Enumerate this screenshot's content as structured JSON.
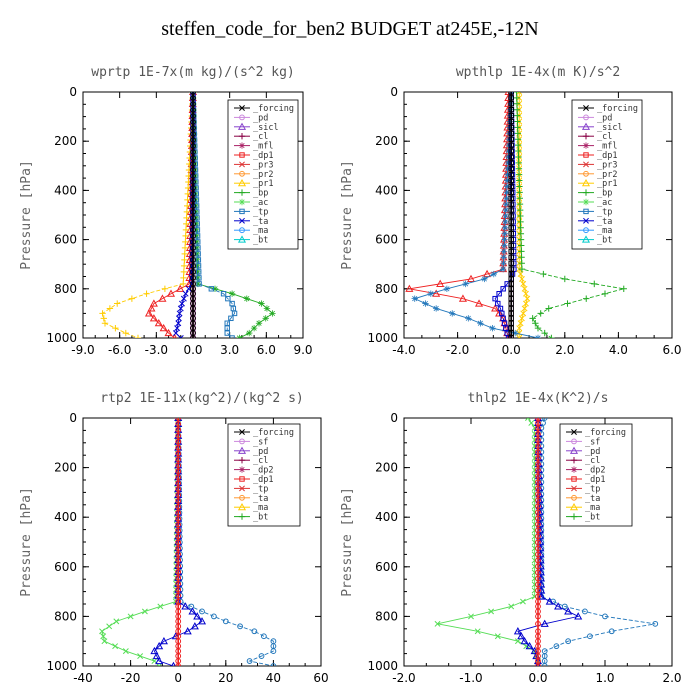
{
  "title": "steffen_code_for_ben2  BUDGET at245E,-12N",
  "chart_data": [
    {
      "type": "line",
      "title": "wprtp  1E-7x(m kg)/(s^2 kg)",
      "ylabel": "Pressure [hPa]",
      "xlim": [
        -9,
        9
      ],
      "ylim": [
        0,
        1000
      ],
      "y_inverted": true,
      "xticks": [
        "-9.0",
        "-6.0",
        "-3.0",
        "0.0",
        "3.0",
        "6.0",
        "9.0"
      ],
      "yticks": [
        "0",
        "200",
        "400",
        "600",
        "800",
        "1000"
      ],
      "legend": [
        "_forcing",
        "_pd",
        "_sicl",
        "_cl",
        "_mfl",
        "_dp1",
        "_pr3",
        "_pr2",
        "_pr1",
        "_bp",
        "_ac",
        "_tp",
        "_ta",
        "_ma",
        "_bt"
      ],
      "y": [
        0,
        780,
        820,
        860,
        900,
        940,
        980,
        1000
      ],
      "series": [
        {
          "name": "_pd",
          "color": "#cc88dd",
          "values": [
            0,
            0,
            0,
            0,
            0,
            0,
            0,
            0
          ]
        },
        {
          "name": "_cl",
          "color": "#880044",
          "values": [
            0,
            0,
            0,
            0,
            0,
            0,
            0,
            0
          ]
        },
        {
          "name": "_dp1",
          "color": "#ee2222",
          "values": [
            0,
            -0.3,
            -1.8,
            -3.2,
            -3.6,
            -2.8,
            -2.0,
            -1.5
          ]
        },
        {
          "name": "_pr1",
          "color": "#ffcc00",
          "values": [
            0,
            -0.8,
            -3.8,
            -6.2,
            -7.4,
            -7.2,
            -5.5,
            -4.5
          ]
        },
        {
          "name": "_bp",
          "color": "#22aa22",
          "values": [
            0,
            0.4,
            3.2,
            5.6,
            6.5,
            5.4,
            4.6,
            3.8
          ]
        },
        {
          "name": "_tp",
          "color": "#2277bb",
          "values": [
            0,
            0.5,
            2.5,
            3.2,
            3.4,
            2.8,
            2.8,
            3.2
          ]
        },
        {
          "name": "_ta",
          "color": "#0000cc",
          "values": [
            0,
            -0.1,
            -0.6,
            -0.9,
            -1.1,
            -1.2,
            -1.4,
            -1.0
          ]
        },
        {
          "name": "_forcing",
          "color": "#000000",
          "values": [
            0,
            0,
            0,
            0,
            0,
            0,
            0,
            0
          ]
        }
      ]
    },
    {
      "type": "line",
      "title": "wpthlp  1E-4x(m K)/s^2",
      "ylabel": "Pressure [hPa]",
      "xlim": [
        -4,
        6
      ],
      "ylim": [
        0,
        1000
      ],
      "y_inverted": true,
      "xticks": [
        "-4.0",
        "-2.0",
        "0.0",
        "2.0",
        "4.0",
        "6.0"
      ],
      "yticks": [
        "0",
        "200",
        "400",
        "600",
        "800",
        "1000"
      ],
      "legend": [
        "_forcing",
        "_pd",
        "_sicl",
        "_cl",
        "_mfl",
        "_dp1",
        "_pr3",
        "_pr2",
        "_pr1",
        "_bp",
        "_ac",
        "_tp",
        "_ta",
        "_ma",
        "_bt"
      ],
      "y": [
        0,
        720,
        760,
        800,
        840,
        880,
        920,
        960,
        1000
      ],
      "series": [
        {
          "name": "_pr1",
          "color": "#ffcc00",
          "values": [
            0.3,
            0.3,
            0.4,
            0.5,
            0.6,
            0.5,
            0.4,
            0.3,
            0.3
          ]
        },
        {
          "name": "_pd",
          "color": "#cc88dd",
          "values": [
            0,
            0,
            0,
            0,
            0,
            0,
            0,
            0,
            0
          ]
        },
        {
          "name": "_dp1",
          "color": "#ee2222",
          "values": [
            -0.1,
            -0.3,
            -1.5,
            -3.8,
            -1.8,
            -0.6,
            -0.3,
            -0.2,
            -0.1
          ]
        },
        {
          "name": "_bp",
          "color": "#22aa22",
          "values": [
            0.2,
            0.4,
            2.0,
            4.2,
            2.8,
            1.4,
            0.8,
            1.0,
            1.5
          ]
        },
        {
          "name": "_tp",
          "color": "#2277bb",
          "values": [
            0,
            -0.3,
            -1.0,
            -2.4,
            -3.6,
            -2.8,
            -1.6,
            -0.7,
            1.0
          ]
        },
        {
          "name": "_ta",
          "color": "#0000cc",
          "values": [
            0,
            0.1,
            0.0,
            -0.3,
            -0.6,
            -0.4,
            -0.3,
            -0.2,
            -0.1
          ]
        },
        {
          "name": "_forcing",
          "color": "#000000",
          "values": [
            0,
            0,
            0,
            0,
            0,
            0,
            0,
            0,
            0
          ]
        }
      ]
    },
    {
      "type": "line",
      "title": "rtp2  1E-11x(kg^2)/(kg^2 s)",
      "ylabel": "Pressure [hPa]",
      "xlim": [
        -40,
        60
      ],
      "ylim": [
        0,
        1000
      ],
      "y_inverted": true,
      "xticks": [
        "-40",
        "-20",
        "0",
        "20",
        "40",
        "60"
      ],
      "yticks": [
        "0",
        "200",
        "400",
        "600",
        "800",
        "1000"
      ],
      "legend": [
        "_forcing",
        "_sf",
        "_pd",
        "_cl",
        "_dp2",
        "_dp1",
        "_tp",
        "_ta",
        "_ma",
        "_bt"
      ],
      "y": [
        0,
        740,
        780,
        820,
        860,
        900,
        940,
        980,
        1000
      ],
      "series": [
        {
          "name": "_dp1",
          "color": "#55dd55",
          "values": [
            0,
            -1,
            -14,
            -26,
            -32,
            -31,
            -22,
            -10,
            -8
          ]
        },
        {
          "name": "_tp",
          "color": "#2277bb",
          "values": [
            0,
            1,
            10,
            20,
            32,
            40,
            40,
            30,
            40
          ]
        },
        {
          "name": "_ta",
          "color": "#0000cc",
          "values": [
            0,
            0,
            6,
            10,
            4,
            -6,
            -10,
            -8,
            -2
          ]
        },
        {
          "name": "_forcing",
          "color": "#ee2222",
          "values": [
            0,
            0,
            0,
            0,
            0,
            0,
            0,
            0,
            0
          ]
        }
      ]
    },
    {
      "type": "line",
      "title": "thlp2  1E-4x(K^2)/s",
      "ylabel": "Pressure [hPa]",
      "xlim": [
        -2,
        2
      ],
      "ylim": [
        0,
        1000
      ],
      "y_inverted": true,
      "xticks": [
        "-2.0",
        "-1.0",
        "0.0",
        "1.0",
        "2.0"
      ],
      "yticks": [
        "0",
        "200",
        "400",
        "600",
        "800",
        "1000"
      ],
      "legend": [
        "_forcing",
        "_sf",
        "_pd",
        "_cl",
        "_dp2",
        "_dp1",
        "_tp",
        "_ta",
        "_ma",
        "_bt"
      ],
      "y": [
        0,
        40,
        720,
        760,
        800,
        830,
        860,
        900,
        940,
        980,
        1000
      ],
      "series": [
        {
          "name": "_dp1",
          "color": "#55dd55",
          "values": [
            -0.15,
            -0.05,
            -0.05,
            -0.4,
            -1.0,
            -1.5,
            -0.9,
            -0.3,
            -0.05,
            0,
            0
          ]
        },
        {
          "name": "_tp",
          "color": "#2277bb",
          "values": [
            0.1,
            0.05,
            0.05,
            0.4,
            1.0,
            1.75,
            1.1,
            0.45,
            0.1,
            0.1,
            0.1
          ]
        },
        {
          "name": "_ta",
          "color": "#0000cc",
          "values": [
            0,
            0,
            0.05,
            0.3,
            0.6,
            0.1,
            -0.3,
            -0.2,
            -0.05,
            0,
            0
          ]
        },
        {
          "name": "_forcing",
          "color": "#ee2222",
          "values": [
            0,
            0,
            0,
            0,
            0,
            0,
            0,
            0,
            0,
            0,
            0
          ]
        }
      ]
    }
  ]
}
